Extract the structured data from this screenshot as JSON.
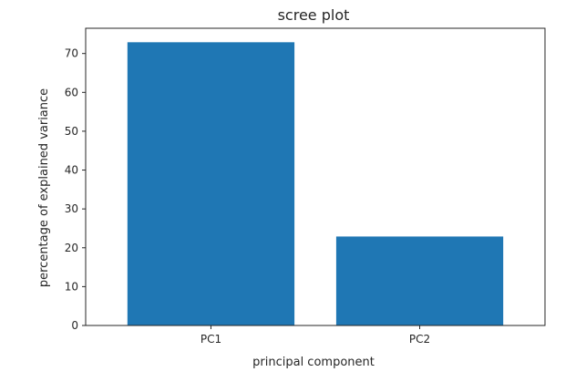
{
  "chart_data": {
    "type": "bar",
    "title": "scree plot",
    "xlabel": "principal component",
    "ylabel": "percentage of explained variance",
    "categories": [
      "PC1",
      "PC2"
    ],
    "values": [
      72.9,
      22.9
    ],
    "ylim": [
      0,
      76.5
    ],
    "yticks": [
      "0",
      "10",
      "20",
      "30",
      "40",
      "50",
      "60",
      "70"
    ],
    "grid": false,
    "bar_color": "#1f77b4"
  }
}
